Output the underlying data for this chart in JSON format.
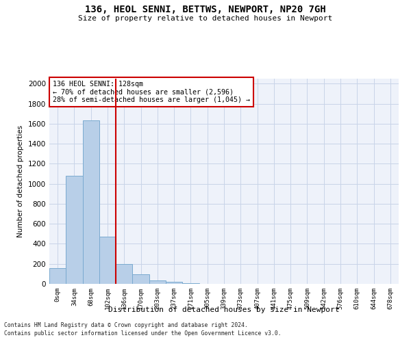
{
  "title_line1": "136, HEOL SENNI, BETTWS, NEWPORT, NP20 7GH",
  "title_line2": "Size of property relative to detached houses in Newport",
  "xlabel": "Distribution of detached houses by size in Newport",
  "ylabel": "Number of detached properties",
  "categories": [
    "0sqm",
    "34sqm",
    "68sqm",
    "102sqm",
    "136sqm",
    "170sqm",
    "203sqm",
    "237sqm",
    "271sqm",
    "305sqm",
    "339sqm",
    "373sqm",
    "407sqm",
    "441sqm",
    "475sqm",
    "509sqm",
    "542sqm",
    "576sqm",
    "610sqm",
    "644sqm",
    "678sqm"
  ],
  "bar_values": [
    160,
    1080,
    1630,
    470,
    200,
    95,
    35,
    22,
    8,
    0,
    0,
    0,
    0,
    0,
    0,
    0,
    0,
    0,
    0,
    0,
    0
  ],
  "bar_color": "#b8cfe8",
  "bar_edge_color": "#7aaad0",
  "vline_index": 3.5,
  "vline_color": "#cc0000",
  "annotation_text": "136 HEOL SENNI: 128sqm\n← 70% of detached houses are smaller (2,596)\n28% of semi-detached houses are larger (1,045) →",
  "annotation_box_facecolor": "#ffffff",
  "annotation_box_edgecolor": "#cc0000",
  "ylim": [
    0,
    2050
  ],
  "yticks": [
    0,
    200,
    400,
    600,
    800,
    1000,
    1200,
    1400,
    1600,
    1800,
    2000
  ],
  "grid_color": "#c8d4e8",
  "bg_color": "#eef2fa",
  "footer_line1": "Contains HM Land Registry data © Crown copyright and database right 2024.",
  "footer_line2": "Contains public sector information licensed under the Open Government Licence v3.0."
}
